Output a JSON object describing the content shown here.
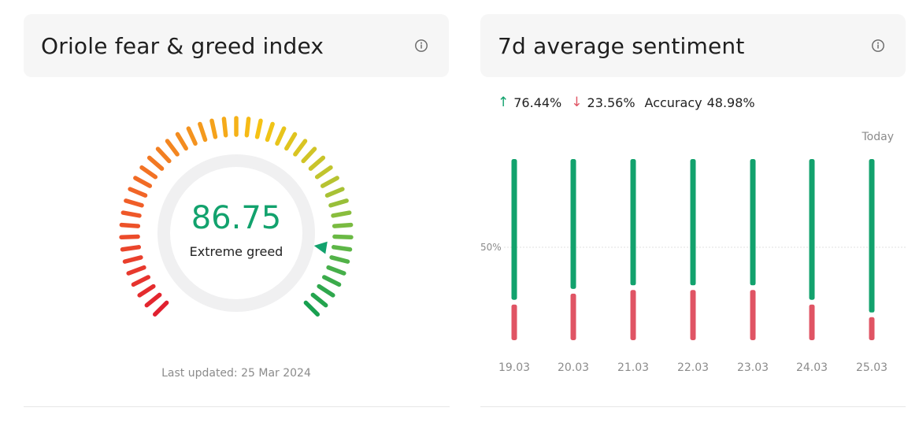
{
  "fear_greed": {
    "title": "Oriole fear & greed index",
    "info_icon": "info-icon",
    "value": "86.75",
    "label": "Extreme greed",
    "last_updated": "Last updated: 25 Mar 2024",
    "gauge_fraction": 0.8675
  },
  "sentiment": {
    "title": "7d average sentiment",
    "info_icon": "info-icon",
    "up_pct": "76.44%",
    "down_pct": "23.56%",
    "accuracy_label": "Accuracy",
    "accuracy_value": "48.98%",
    "today_label": "Today",
    "fifty_label": "50%"
  },
  "colors": {
    "green": "#12a26d",
    "red": "#e05464",
    "gray_text": "#8b8b8b"
  },
  "chart_data": {
    "type": "bar",
    "categories": [
      "19.03",
      "20.03",
      "21.03",
      "22.03",
      "23.03",
      "24.03",
      "25.03"
    ],
    "series": [
      {
        "values": [
          79,
          73,
          71,
          71,
          71,
          79,
          86
        ]
      },
      {
        "values": [
          21,
          27,
          29,
          29,
          29,
          21,
          14
        ]
      }
    ],
    "ylim": [
      0,
      100
    ],
    "grid": false,
    "reference_line": 50
  }
}
